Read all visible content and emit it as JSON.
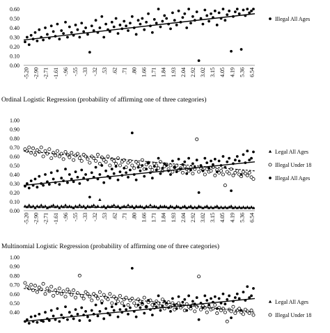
{
  "figure": {
    "panels": [
      {
        "id": "top",
        "title": "",
        "legend": [
          "Illegal All Ages"
        ]
      },
      {
        "id": "ordinal",
        "title": "Ordinal Logistic Regression (probability of affirming one of three categories)",
        "legend": [
          "Legal All Ages",
          "Illegal Under 18",
          "Illegal All Ages"
        ]
      },
      {
        "id": "multinomial",
        "title": "Multinomial Logistic Regression (probability of affirming one of three categories)",
        "legend": [
          "Legal All Ages",
          "Illegal Under 18",
          "Illegal All Ages"
        ]
      }
    ]
  },
  "chart_data": [
    {
      "type": "scatter",
      "title": "",
      "xlabel": "",
      "ylabel": "",
      "x_tick_labels": [
        "-5.20",
        "-2.90",
        "-2.71",
        "-1.61",
        "-.96",
        "-.55",
        "-.33",
        "-.32",
        ".53",
        ".62",
        ".71",
        ".80",
        "1.66",
        "1.71",
        "1.84",
        "1.93",
        "2.04",
        "2.92",
        "3.02",
        "3.15",
        "4.05",
        "4.19",
        "5.36",
        "6.54"
      ],
      "ylim": [
        0,
        0.6
      ],
      "y_ticks_visible": [
        "0.00",
        "0.10",
        "0.20",
        "0.30",
        "0.40",
        "0.50",
        "0.60"
      ],
      "series": [
        {
          "name": "Illegal All Ages",
          "marker": "filled-circle",
          "trend_start": 0.27,
          "trend_end": 0.55,
          "values": [
            0.25,
            0.3,
            0.22,
            0.32,
            0.28,
            0.35,
            0.26,
            0.38,
            0.3,
            0.27,
            0.4,
            0.33,
            0.29,
            0.42,
            0.36,
            0.31,
            0.44,
            0.28,
            0.37,
            0.34,
            0.46,
            0.3,
            0.41,
            0.35,
            0.32,
            0.43,
            0.38,
            0.3,
            0.45,
            0.36,
            0.4,
            0.33,
            0.14,
            0.42,
            0.37,
            0.48,
            0.35,
            0.4,
            0.52,
            0.3,
            0.44,
            0.38,
            0.36,
            0.46,
            0.41,
            0.5,
            0.34,
            0.43,
            0.39,
            0.47,
            0.42,
            0.37,
            0.45,
            0.52,
            0.4,
            0.33,
            0.48,
            0.44,
            0.5,
            0.38,
            0.46,
            0.55,
            0.42,
            0.35,
            0.49,
            0.45,
            0.6,
            0.41,
            0.47,
            0.53,
            0.5,
            0.44,
            0.39,
            0.56,
            0.48,
            0.43,
            0.58,
            0.46,
            0.51,
            0.55,
            0.4,
            0.6,
            0.45,
            0.52,
            0.48,
            0.57,
            0.05,
            0.5,
            0.44,
            0.59,
            0.53,
            0.47,
            0.55,
            0.51,
            0.58,
            0.43,
            0.56,
            0.5,
            0.6,
            0.48,
            0.54,
            0.58,
            0.15,
            0.52,
            0.57,
            0.6,
            0.55,
            0.17,
            0.59,
            0.53,
            0.6,
            0.56,
            0.58,
            0.6
          ]
        }
      ]
    },
    {
      "type": "scatter",
      "title": "Ordinal Logistic Regression (probability of affirming one of three categories)",
      "xlabel": "",
      "ylabel": "",
      "x_tick_labels": [
        "-5.20",
        "-2.90",
        "-2.71",
        "-1.61",
        "-.96",
        "-.55",
        "-.33",
        "-.32",
        ".53",
        ".62",
        ".71",
        ".80",
        "1.66",
        "1.71",
        "1.84",
        "1.93",
        "2.04",
        "2.92",
        "3.02",
        "3.15",
        "4.05",
        "4.19",
        "5.36",
        "6.54"
      ],
      "y_ticks": [
        "0.00",
        "0.10",
        "0.20",
        "0.30",
        "0.40",
        "0.50",
        "0.60",
        "0.70",
        "0.80",
        "0.90",
        "1.00"
      ],
      "ylim": [
        0,
        1
      ],
      "series": [
        {
          "name": "Legal All Ages",
          "marker": "filled-triangle",
          "trend_start": 0.04,
          "trend_end": 0.03,
          "values": [
            0.05,
            0.04,
            0.06,
            0.04,
            0.05,
            0.03,
            0.05,
            0.04,
            0.06,
            0.04,
            0.05,
            0.03,
            0.04,
            0.05,
            0.06,
            0.04,
            0.05,
            0.03,
            0.05,
            0.04,
            0.06,
            0.04,
            0.05,
            0.04,
            0.03,
            0.05,
            0.04,
            0.06,
            0.04,
            0.05,
            0.03,
            0.05,
            0.04,
            0.05,
            0.06,
            0.04,
            0.05,
            0.12,
            0.04,
            0.05,
            0.03,
            0.05,
            0.04,
            0.05,
            0.06,
            0.04,
            0.05,
            0.03,
            0.04,
            0.05,
            0.04,
            0.06,
            0.04,
            0.05,
            0.03,
            0.05,
            0.04,
            0.05,
            0.04,
            0.03,
            0.05,
            0.04,
            0.06,
            0.04,
            0.05,
            0.04,
            0.03,
            0.05,
            0.04,
            0.05,
            0.04,
            0.03,
            0.05,
            0.04,
            0.03,
            0.05,
            0.04,
            0.03,
            0.04,
            0.05,
            0.03,
            0.04,
            0.05,
            0.03,
            0.04,
            0.03,
            0.05,
            0.04,
            0.03,
            0.04,
            0.05,
            0.03,
            0.04,
            0.03,
            0.04,
            0.05,
            0.03,
            0.04,
            0.03,
            0.04,
            0.03,
            0.04,
            0.05,
            0.03,
            0.04,
            0.03,
            0.04,
            0.03,
            0.04,
            0.03,
            0.04,
            0.03,
            0.04,
            0.03
          ]
        },
        {
          "name": "Illegal Under 18",
          "marker": "open-circle",
          "trend_start": 0.66,
          "trend_end": 0.44,
          "values": [
            0.68,
            0.66,
            0.7,
            0.64,
            0.69,
            0.62,
            0.67,
            0.65,
            0.7,
            0.6,
            0.66,
            0.63,
            0.68,
            0.58,
            0.64,
            0.61,
            0.66,
            0.6,
            0.63,
            0.57,
            0.65,
            0.62,
            0.59,
            0.64,
            0.56,
            0.61,
            0.63,
            0.58,
            0.55,
            0.62,
            0.6,
            0.57,
            0.53,
            0.6,
            0.58,
            0.55,
            0.62,
            0.52,
            0.59,
            0.56,
            0.54,
            0.6,
            0.5,
            0.57,
            0.55,
            0.52,
            0.58,
            0.5,
            0.54,
            0.56,
            0.48,
            0.53,
            0.55,
            0.5,
            0.47,
            0.54,
            0.52,
            0.49,
            0.56,
            0.46,
            0.51,
            0.53,
            0.48,
            0.45,
            0.52,
            0.5,
            0.47,
            0.54,
            0.44,
            0.49,
            0.51,
            0.46,
            0.5,
            0.43,
            0.48,
            0.5,
            0.45,
            0.47,
            0.42,
            0.49,
            0.46,
            0.44,
            0.48,
            0.41,
            0.46,
            0.79,
            0.43,
            0.47,
            0.45,
            0.4,
            0.46,
            0.43,
            0.44,
            0.48,
            0.39,
            0.45,
            0.42,
            0.44,
            0.4,
            0.28,
            0.43,
            0.41,
            0.46,
            0.39,
            0.42,
            0.44,
            0.4,
            0.38,
            0.43,
            0.41,
            0.39,
            0.42,
            0.37,
            0.35
          ]
        },
        {
          "name": "Illegal All Ages",
          "marker": "filled-circle",
          "trend_start": 0.28,
          "trend_end": 0.54,
          "values": [
            0.27,
            0.3,
            0.25,
            0.33,
            0.28,
            0.35,
            0.26,
            0.38,
            0.3,
            0.28,
            0.4,
            0.32,
            0.29,
            0.42,
            0.35,
            0.31,
            0.44,
            0.29,
            0.36,
            0.33,
            0.46,
            0.31,
            0.4,
            0.35,
            0.32,
            0.43,
            0.37,
            0.3,
            0.45,
            0.36,
            0.4,
            0.34,
            0.15,
            0.42,
            0.37,
            0.48,
            0.35,
            0.4,
            0.5,
            0.31,
            0.44,
            0.38,
            0.36,
            0.46,
            0.41,
            0.49,
            0.34,
            0.43,
            0.39,
            0.47,
            0.42,
            0.37,
            0.45,
            0.86,
            0.4,
            0.34,
            0.48,
            0.44,
            0.5,
            0.38,
            0.46,
            0.53,
            0.42,
            0.36,
            0.49,
            0.45,
            0.58,
            0.41,
            0.47,
            0.52,
            0.5,
            0.44,
            0.4,
            0.55,
            0.48,
            0.43,
            0.57,
            0.46,
            0.51,
            0.54,
            0.41,
            0.58,
            0.45,
            0.52,
            0.48,
            0.56,
            0.2,
            0.5,
            0.44,
            0.58,
            0.53,
            0.47,
            0.55,
            0.51,
            0.57,
            0.43,
            0.55,
            0.5,
            0.6,
            0.48,
            0.54,
            0.58,
            0.22,
            0.52,
            0.56,
            0.6,
            0.55,
            0.4,
            0.62,
            0.53,
            0.66,
            0.56,
            0.58,
            0.65
          ]
        }
      ]
    },
    {
      "type": "scatter",
      "title": "Multinomial Logistic Regression (probability of affirming one of three categories)",
      "xlabel": "",
      "ylabel": "",
      "y_ticks_visible": [
        "0.40",
        "0.50",
        "0.60",
        "0.70",
        "0.80",
        "0.90",
        "1.00"
      ],
      "ylim": [
        0.3,
        1
      ],
      "series": [
        {
          "name": "Illegal Under 18",
          "marker": "open-circle",
          "trend_start": 0.66,
          "trend_end": 0.4,
          "values": [
            0.72,
            0.68,
            0.66,
            0.7,
            0.64,
            0.69,
            0.62,
            0.67,
            0.65,
            0.71,
            0.6,
            0.66,
            0.63,
            0.68,
            0.58,
            0.64,
            0.61,
            0.66,
            0.6,
            0.63,
            0.57,
            0.65,
            0.62,
            0.59,
            0.64,
            0.56,
            0.61,
            0.8,
            0.58,
            0.55,
            0.62,
            0.6,
            0.57,
            0.53,
            0.6,
            0.58,
            0.55,
            0.62,
            0.52,
            0.59,
            0.56,
            0.54,
            0.6,
            0.5,
            0.57,
            0.55,
            0.52,
            0.58,
            0.5,
            0.54,
            0.56,
            0.48,
            0.53,
            0.55,
            0.5,
            0.47,
            0.54,
            0.52,
            0.49,
            0.56,
            0.46,
            0.51,
            0.53,
            0.48,
            0.45,
            0.52,
            0.5,
            0.47,
            0.54,
            0.44,
            0.49,
            0.51,
            0.46,
            0.5,
            0.43,
            0.48,
            0.5,
            0.45,
            0.47,
            0.42,
            0.49,
            0.46,
            0.44,
            0.48,
            0.41,
            0.46,
            0.79,
            0.43,
            0.47,
            0.45,
            0.4,
            0.46,
            0.43,
            0.44,
            0.48,
            0.39,
            0.45,
            0.42,
            0.44,
            0.4,
            0.3,
            0.43,
            0.41,
            0.46,
            0.39,
            0.42,
            0.44,
            0.4,
            0.38,
            0.43,
            0.41,
            0.39,
            0.42,
            0.37
          ]
        },
        {
          "name": "Illegal All Ages",
          "marker": "filled-circle",
          "trend_start": 0.3,
          "trend_end": 0.55,
          "values": [
            0.3,
            0.32,
            0.28,
            0.35,
            0.3,
            0.36,
            0.29,
            0.38,
            0.31,
            0.3,
            0.4,
            0.33,
            0.31,
            0.42,
            0.36,
            0.32,
            0.44,
            0.3,
            0.37,
            0.34,
            0.46,
            0.32,
            0.4,
            0.36,
            0.33,
            0.43,
            0.38,
            0.31,
            0.45,
            0.37,
            0.41,
            0.35,
            0.31,
            0.42,
            0.38,
            0.48,
            0.36,
            0.41,
            0.5,
            0.33,
            0.44,
            0.39,
            0.37,
            0.46,
            0.42,
            0.49,
            0.35,
            0.43,
            0.4,
            0.47,
            0.43,
            0.38,
            0.45,
            0.88,
            0.41,
            0.35,
            0.48,
            0.45,
            0.5,
            0.39,
            0.46,
            0.53,
            0.43,
            0.37,
            0.49,
            0.46,
            0.58,
            0.42,
            0.47,
            0.52,
            0.5,
            0.45,
            0.41,
            0.55,
            0.48,
            0.44,
            0.57,
            0.47,
            0.51,
            0.54,
            0.42,
            0.58,
            0.46,
            0.52,
            0.49,
            0.56,
            0.32,
            0.5,
            0.45,
            0.58,
            0.53,
            0.48,
            0.55,
            0.51,
            0.57,
            0.44,
            0.55,
            0.5,
            0.6,
            0.49,
            0.54,
            0.58,
            0.34,
            0.52,
            0.56,
            0.6,
            0.55,
            0.42,
            0.62,
            0.53,
            0.68,
            0.56,
            0.58,
            0.66
          ]
        }
      ]
    }
  ]
}
